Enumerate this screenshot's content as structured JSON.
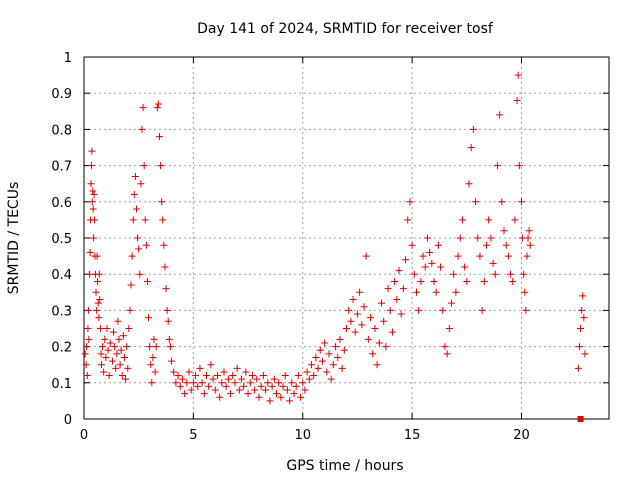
{
  "chart_data": {
    "type": "scatter",
    "title": "Day 141 of 2024, SRMTID for receiver tosf",
    "xlabel": "GPS time / hours",
    "ylabel": "SRMTID / TECUs",
    "xlim": [
      0,
      24
    ],
    "ylim": [
      0,
      1
    ],
    "xticks": [
      0,
      5,
      10,
      15,
      20
    ],
    "yticks": [
      0,
      0.1,
      0.2,
      0.3,
      0.4,
      0.5,
      0.6,
      0.7,
      0.8,
      0.9,
      1
    ],
    "grid": true,
    "marker": "plus",
    "color": "#e00000",
    "series": [
      {
        "name": "SRMTID",
        "points": [
          [
            0.05,
            0.18
          ],
          [
            0.1,
            0.15
          ],
          [
            0.12,
            0.2
          ],
          [
            0.15,
            0.12
          ],
          [
            0.18,
            0.25
          ],
          [
            0.2,
            0.3
          ],
          [
            0.22,
            0.22
          ],
          [
            0.25,
            0.4
          ],
          [
            0.28,
            0.46
          ],
          [
            0.3,
            0.55
          ],
          [
            0.32,
            0.65
          ],
          [
            0.34,
            0.7
          ],
          [
            0.36,
            0.74
          ],
          [
            0.38,
            0.6
          ],
          [
            0.4,
            0.63
          ],
          [
            0.42,
            0.58
          ],
          [
            0.44,
            0.5
          ],
          [
            0.46,
            0.62
          ],
          [
            0.48,
            0.55
          ],
          [
            0.5,
            0.45
          ],
          [
            0.52,
            0.4
          ],
          [
            0.55,
            0.35
          ],
          [
            0.58,
            0.3
          ],
          [
            0.6,
            0.45
          ],
          [
            0.62,
            0.38
          ],
          [
            0.65,
            0.32
          ],
          [
            0.68,
            0.28
          ],
          [
            0.7,
            0.4
          ],
          [
            0.72,
            0.33
          ],
          [
            0.75,
            0.25
          ],
          [
            0.78,
            0.18
          ],
          [
            0.8,
            0.15
          ],
          [
            0.85,
            0.2
          ],
          [
            0.9,
            0.13
          ],
          [
            0.95,
            0.22
          ],
          [
            1.0,
            0.17
          ],
          [
            1.05,
            0.25
          ],
          [
            1.1,
            0.19
          ],
          [
            1.15,
            0.12
          ],
          [
            1.2,
            0.21
          ],
          [
            1.3,
            0.16
          ],
          [
            1.35,
            0.24
          ],
          [
            1.4,
            0.2
          ],
          [
            1.45,
            0.14
          ],
          [
            1.5,
            0.18
          ],
          [
            1.55,
            0.27
          ],
          [
            1.6,
            0.22
          ],
          [
            1.65,
            0.15
          ],
          [
            1.7,
            0.19
          ],
          [
            1.75,
            0.12
          ],
          [
            1.8,
            0.23
          ],
          [
            1.85,
            0.17
          ],
          [
            1.9,
            0.11
          ],
          [
            1.95,
            0.2
          ],
          [
            2.0,
            0.14
          ],
          [
            2.05,
            0.25
          ],
          [
            2.1,
            0.3
          ],
          [
            2.15,
            0.37
          ],
          [
            2.2,
            0.45
          ],
          [
            2.25,
            0.55
          ],
          [
            2.3,
            0.62
          ],
          [
            2.35,
            0.67
          ],
          [
            2.4,
            0.58
          ],
          [
            2.45,
            0.5
          ],
          [
            2.5,
            0.47
          ],
          [
            2.55,
            0.4
          ],
          [
            2.6,
            0.65
          ],
          [
            2.65,
            0.8
          ],
          [
            2.7,
            0.86
          ],
          [
            2.75,
            0.7
          ],
          [
            2.8,
            0.55
          ],
          [
            2.85,
            0.48
          ],
          [
            2.9,
            0.38
          ],
          [
            2.95,
            0.28
          ],
          [
            3.0,
            0.2
          ],
          [
            3.05,
            0.15
          ],
          [
            3.1,
            0.1
          ],
          [
            3.15,
            0.17
          ],
          [
            3.2,
            0.22
          ],
          [
            3.25,
            0.13
          ],
          [
            3.3,
            0.2
          ],
          [
            3.35,
            0.86
          ],
          [
            3.4,
            0.87
          ],
          [
            3.45,
            0.78
          ],
          [
            3.5,
            0.7
          ],
          [
            3.55,
            0.6
          ],
          [
            3.6,
            0.55
          ],
          [
            3.65,
            0.48
          ],
          [
            3.7,
            0.42
          ],
          [
            3.75,
            0.36
          ],
          [
            3.8,
            0.3
          ],
          [
            3.85,
            0.27
          ],
          [
            3.9,
            0.22
          ],
          [
            3.95,
            0.2
          ],
          [
            4.0,
            0.16
          ],
          [
            4.1,
            0.13
          ],
          [
            4.2,
            0.1
          ],
          [
            4.3,
            0.12
          ],
          [
            4.4,
            0.09
          ],
          [
            4.5,
            0.11
          ],
          [
            4.6,
            0.07
          ],
          [
            4.7,
            0.1
          ],
          [
            4.8,
            0.13
          ],
          [
            4.9,
            0.08
          ],
          [
            5.0,
            0.1
          ],
          [
            5.1,
            0.12
          ],
          [
            5.2,
            0.09
          ],
          [
            5.3,
            0.14
          ],
          [
            5.4,
            0.1
          ],
          [
            5.5,
            0.07
          ],
          [
            5.6,
            0.12
          ],
          [
            5.7,
            0.09
          ],
          [
            5.8,
            0.15
          ],
          [
            5.9,
            0.11
          ],
          [
            6.0,
            0.08
          ],
          [
            6.1,
            0.12
          ],
          [
            6.2,
            0.06
          ],
          [
            6.3,
            0.1
          ],
          [
            6.4,
            0.13
          ],
          [
            6.5,
            0.09
          ],
          [
            6.6,
            0.11
          ],
          [
            6.7,
            0.07
          ],
          [
            6.8,
            0.12
          ],
          [
            6.9,
            0.1
          ],
          [
            7.0,
            0.14
          ],
          [
            7.1,
            0.08
          ],
          [
            7.2,
            0.11
          ],
          [
            7.3,
            0.09
          ],
          [
            7.4,
            0.13
          ],
          [
            7.5,
            0.07
          ],
          [
            7.6,
            0.1
          ],
          [
            7.7,
            0.12
          ],
          [
            7.8,
            0.08
          ],
          [
            7.9,
            0.11
          ],
          [
            8.0,
            0.06
          ],
          [
            8.1,
            0.09
          ],
          [
            8.2,
            0.12
          ],
          [
            8.3,
            0.08
          ],
          [
            8.4,
            0.1
          ],
          [
            8.5,
            0.05
          ],
          [
            8.6,
            0.09
          ],
          [
            8.7,
            0.11
          ],
          [
            8.8,
            0.07
          ],
          [
            8.9,
            0.1
          ],
          [
            9.0,
            0.06
          ],
          [
            9.1,
            0.09
          ],
          [
            9.2,
            0.12
          ],
          [
            9.3,
            0.08
          ],
          [
            9.4,
            0.05
          ],
          [
            9.5,
            0.1
          ],
          [
            9.6,
            0.07
          ],
          [
            9.7,
            0.09
          ],
          [
            9.8,
            0.12
          ],
          [
            9.9,
            0.06
          ],
          [
            10.0,
            0.1
          ],
          [
            10.1,
            0.08
          ],
          [
            10.2,
            0.13
          ],
          [
            10.3,
            0.11
          ],
          [
            10.4,
            0.15
          ],
          [
            10.5,
            0.12
          ],
          [
            10.6,
            0.17
          ],
          [
            10.7,
            0.14
          ],
          [
            10.8,
            0.19
          ],
          [
            10.9,
            0.16
          ],
          [
            11.0,
            0.21
          ],
          [
            11.1,
            0.13
          ],
          [
            11.2,
            0.18
          ],
          [
            11.3,
            0.11
          ],
          [
            11.4,
            0.15
          ],
          [
            11.5,
            0.2
          ],
          [
            11.6,
            0.17
          ],
          [
            11.7,
            0.22
          ],
          [
            11.8,
            0.14
          ],
          [
            11.9,
            0.19
          ],
          [
            12.0,
            0.25
          ],
          [
            12.1,
            0.3
          ],
          [
            12.2,
            0.27
          ],
          [
            12.3,
            0.33
          ],
          [
            12.4,
            0.24
          ],
          [
            12.5,
            0.29
          ],
          [
            12.6,
            0.35
          ],
          [
            12.7,
            0.26
          ],
          [
            12.8,
            0.31
          ],
          [
            12.9,
            0.45
          ],
          [
            13.0,
            0.22
          ],
          [
            13.1,
            0.28
          ],
          [
            13.2,
            0.18
          ],
          [
            13.3,
            0.25
          ],
          [
            13.4,
            0.15
          ],
          [
            13.5,
            0.21
          ],
          [
            13.6,
            0.32
          ],
          [
            13.7,
            0.27
          ],
          [
            13.8,
            0.2
          ],
          [
            13.9,
            0.36
          ],
          [
            14.0,
            0.3
          ],
          [
            14.1,
            0.24
          ],
          [
            14.2,
            0.38
          ],
          [
            14.3,
            0.33
          ],
          [
            14.4,
            0.41
          ],
          [
            14.5,
            0.29
          ],
          [
            14.6,
            0.36
          ],
          [
            14.7,
            0.44
          ],
          [
            14.8,
            0.55
          ],
          [
            14.9,
            0.6
          ],
          [
            15.0,
            0.48
          ],
          [
            15.1,
            0.4
          ],
          [
            15.2,
            0.35
          ],
          [
            15.3,
            0.3
          ],
          [
            15.4,
            0.38
          ],
          [
            15.5,
            0.45
          ],
          [
            15.6,
            0.42
          ],
          [
            15.7,
            0.5
          ],
          [
            15.8,
            0.46
          ],
          [
            15.9,
            0.43
          ],
          [
            16.0,
            0.38
          ],
          [
            16.1,
            0.35
          ],
          [
            16.2,
            0.48
          ],
          [
            16.3,
            0.42
          ],
          [
            16.4,
            0.3
          ],
          [
            16.5,
            0.2
          ],
          [
            16.6,
            0.18
          ],
          [
            16.7,
            0.25
          ],
          [
            16.8,
            0.32
          ],
          [
            16.9,
            0.4
          ],
          [
            17.0,
            0.35
          ],
          [
            17.1,
            0.45
          ],
          [
            17.2,
            0.5
          ],
          [
            17.3,
            0.55
          ],
          [
            17.4,
            0.42
          ],
          [
            17.5,
            0.38
          ],
          [
            17.6,
            0.65
          ],
          [
            17.7,
            0.75
          ],
          [
            17.8,
            0.8
          ],
          [
            17.9,
            0.6
          ],
          [
            18.0,
            0.5
          ],
          [
            18.1,
            0.45
          ],
          [
            18.2,
            0.3
          ],
          [
            18.3,
            0.38
          ],
          [
            18.4,
            0.48
          ],
          [
            18.5,
            0.55
          ],
          [
            18.6,
            0.5
          ],
          [
            18.7,
            0.43
          ],
          [
            18.8,
            0.4
          ],
          [
            18.9,
            0.7
          ],
          [
            19.0,
            0.84
          ],
          [
            19.1,
            0.6
          ],
          [
            19.2,
            0.52
          ],
          [
            19.3,
            0.48
          ],
          [
            19.4,
            0.45
          ],
          [
            19.5,
            0.4
          ],
          [
            19.6,
            0.38
          ],
          [
            19.7,
            0.55
          ],
          [
            19.8,
            0.88
          ],
          [
            19.85,
            0.95
          ],
          [
            19.9,
            0.7
          ],
          [
            20.0,
            0.6
          ],
          [
            20.05,
            0.5
          ],
          [
            20.1,
            0.4
          ],
          [
            20.15,
            0.35
          ],
          [
            20.2,
            0.3
          ],
          [
            20.25,
            0.45
          ],
          [
            20.3,
            0.5
          ],
          [
            20.35,
            0.52
          ],
          [
            20.4,
            0.48
          ],
          [
            22.6,
            0.14
          ],
          [
            22.65,
            0.2
          ],
          [
            22.7,
            0.25
          ],
          [
            22.75,
            0.3
          ],
          [
            22.8,
            0.34
          ],
          [
            22.85,
            0.28
          ],
          [
            22.9,
            0.18
          ]
        ]
      }
    ],
    "special_points": [
      {
        "marker": "square",
        "x": 22.7,
        "y": 0.0
      }
    ]
  }
}
